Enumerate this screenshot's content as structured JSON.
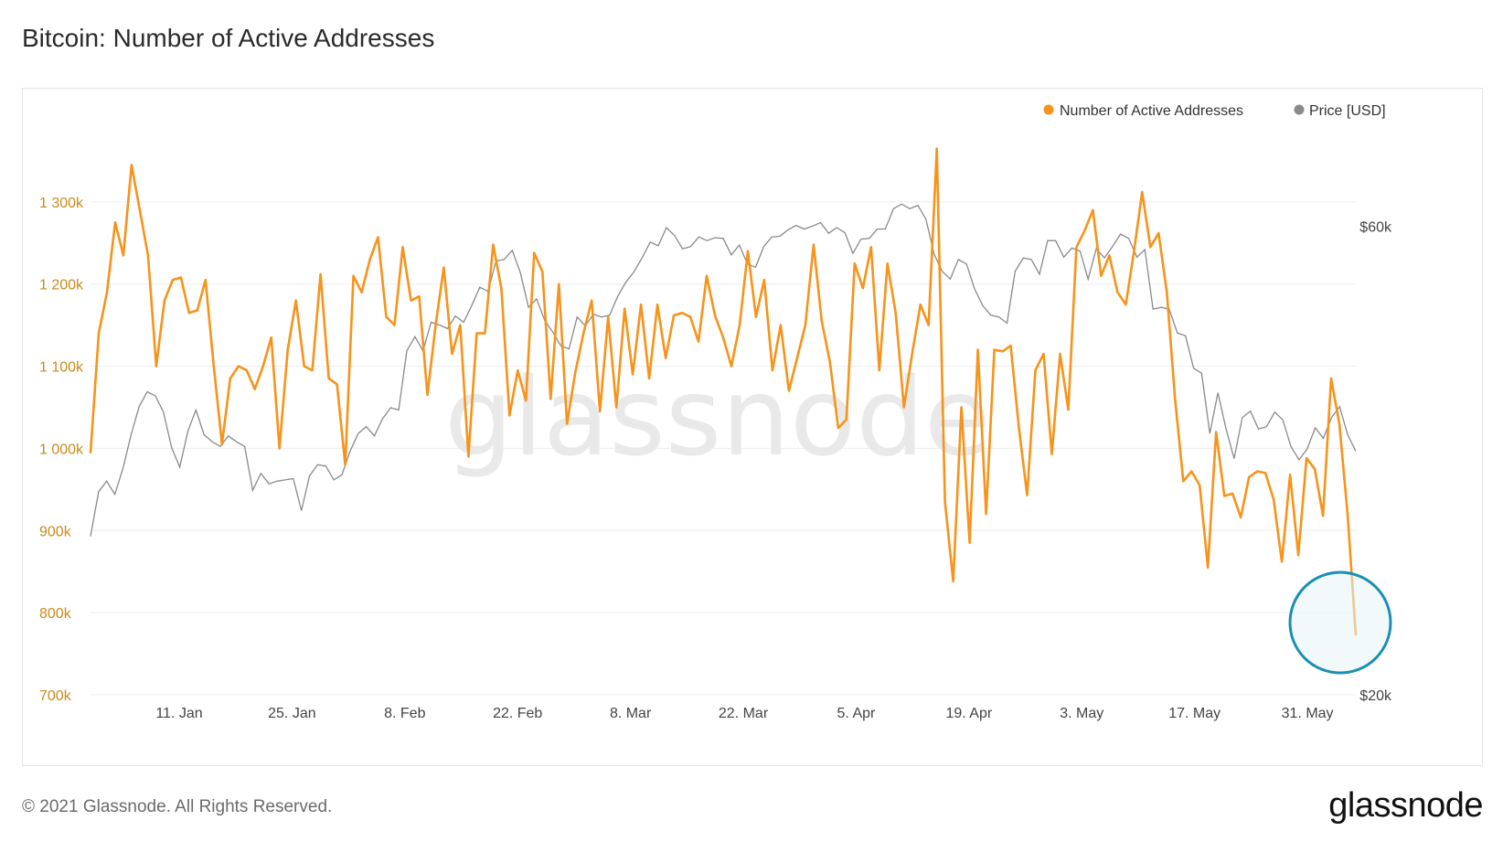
{
  "title": "Bitcoin: Number of Active Addresses",
  "footer": "© 2021 Glassnode. All Rights Reserved.",
  "brand": "glassnode",
  "watermark": "glassnode",
  "colors": {
    "addresses": "#f7931a",
    "price": "#8a8a8a",
    "highlight": "#1a8fb3",
    "left_ticks": "#c98a1c",
    "right_ticks": "#444444"
  },
  "chart_data": {
    "type": "line",
    "title": "Bitcoin: Number of Active Addresses",
    "x_start": "2020-12-31",
    "x_end": "2021-06-06",
    "x_ticks": [
      {
        "label": "11. Jan",
        "date": "2021-01-11"
      },
      {
        "label": "25. Jan",
        "date": "2021-01-25"
      },
      {
        "label": "8. Feb",
        "date": "2021-02-08"
      },
      {
        "label": "22. Feb",
        "date": "2021-02-22"
      },
      {
        "label": "8. Mar",
        "date": "2021-03-08"
      },
      {
        "label": "22. Mar",
        "date": "2021-03-22"
      },
      {
        "label": "5. Apr",
        "date": "2021-04-05"
      },
      {
        "label": "19. Apr",
        "date": "2021-04-19"
      },
      {
        "label": "3. May",
        "date": "2021-05-03"
      },
      {
        "label": "17. May",
        "date": "2021-05-17"
      },
      {
        "label": "31. May",
        "date": "2021-05-31"
      }
    ],
    "y_left": {
      "ticks": [
        "700k",
        "800k",
        "900k",
        "1 000k",
        "1 100k",
        "1 200k",
        "1 300k"
      ],
      "ylim": [
        700000,
        1400000
      ]
    },
    "y_right": {
      "ticks": [
        "$20k",
        "$60k"
      ],
      "scale": "log",
      "ylim_usd": [
        20000,
        77000
      ]
    },
    "legend_position": "top-right",
    "grid": true,
    "series": [
      {
        "name": "Number of Active Addresses",
        "axis": "left",
        "values": [
          994000,
          1140000,
          1190000,
          1275000,
          1235000,
          1345000,
          1290000,
          1235000,
          1100000,
          1180000,
          1205000,
          1208000,
          1165000,
          1168000,
          1205000,
          1100000,
          1005000,
          1085000,
          1100000,
          1095000,
          1072000,
          1100000,
          1135000,
          1000000,
          1120000,
          1180000,
          1100000,
          1095000,
          1212000,
          1085000,
          1078000,
          980000,
          1210000,
          1190000,
          1230000,
          1257000,
          1160000,
          1150000,
          1245000,
          1180000,
          1185000,
          1065000,
          1150000,
          1220000,
          1115000,
          1150000,
          990000,
          1140000,
          1140000,
          1248000,
          1195000,
          1040000,
          1095000,
          1058000,
          1238000,
          1215000,
          1060000,
          1200000,
          1030000,
          1092000,
          1140000,
          1180000,
          1045000,
          1160000,
          1050000,
          1170000,
          1090000,
          1175000,
          1085000,
          1175000,
          1110000,
          1162000,
          1165000,
          1160000,
          1130000,
          1210000,
          1162000,
          1135000,
          1100000,
          1150000,
          1240000,
          1160000,
          1205000,
          1095000,
          1150000,
          1070000,
          1110000,
          1150000,
          1248000,
          1155000,
          1105000,
          1025000,
          1035000,
          1225000,
          1195000,
          1245000,
          1095000,
          1225000,
          1165000,
          1050000,
          1115000,
          1175000,
          1150000,
          1365000,
          935000,
          838000,
          1050000,
          885000,
          1120000,
          920000,
          1120000,
          1118000,
          1125000,
          1025000,
          943000,
          1095000,
          1115000,
          993000,
          1115000,
          1047000,
          1245000,
          1265000,
          1290000,
          1210000,
          1235000,
          1190000,
          1175000,
          1240000,
          1312000,
          1245000,
          1262000,
          1190000,
          1060000,
          960000,
          972000,
          955000,
          855000,
          1020000,
          942000,
          945000,
          916000,
          965000,
          972000,
          970000,
          938000,
          862000,
          968000,
          870000,
          988000,
          975000,
          918000,
          1085000,
          1030000,
          920000,
          772000
        ]
      },
      {
        "name": "Price [USD]",
        "axis": "right",
        "values": [
          29000,
          32200,
          33000,
          32000,
          34000,
          36800,
          39300,
          40700,
          40300,
          38800,
          35700,
          34100,
          37100,
          39000,
          36800,
          36200,
          35800,
          36700,
          36200,
          35800,
          32300,
          33600,
          32800,
          33000,
          33100,
          33200,
          30800,
          33400,
          34300,
          34200,
          33100,
          33500,
          35400,
          36900,
          37500,
          36700,
          38200,
          39200,
          39000,
          44800,
          46300,
          44800,
          47900,
          47600,
          47200,
          48600,
          47900,
          49800,
          52000,
          51500,
          55300,
          55500,
          56700,
          53800,
          49600,
          50600,
          48100,
          46800,
          45300,
          45000,
          48500,
          47500,
          48800,
          48500,
          48700,
          50900,
          52600,
          53900,
          55700,
          57800,
          57300,
          59800,
          58700,
          56900,
          57200,
          58500,
          58000,
          58400,
          58300,
          56100,
          57400,
          54900,
          54500,
          57200,
          58500,
          58600,
          59500,
          60100,
          59600,
          60000,
          60500,
          59000,
          59800,
          59100,
          56300,
          58200,
          58300,
          59600,
          59600,
          62500,
          63200,
          62500,
          63000,
          61000,
          56200,
          54000,
          53000,
          55500,
          54900,
          51800,
          49800,
          48700,
          48500,
          47800,
          54000,
          55700,
          55500,
          53600,
          58000,
          58000,
          55800,
          57000,
          56600,
          53000,
          56900,
          55700,
          57200,
          58900,
          58300,
          55800,
          56800,
          49400,
          49600,
          49400,
          46700,
          46400,
          43000,
          42500,
          36900,
          40600,
          37300,
          34800,
          38300,
          38900,
          37300,
          37500,
          38800,
          38100,
          35800,
          34700,
          35600,
          37400,
          36500,
          38300,
          39300,
          36800,
          35400
        ]
      }
    ]
  }
}
